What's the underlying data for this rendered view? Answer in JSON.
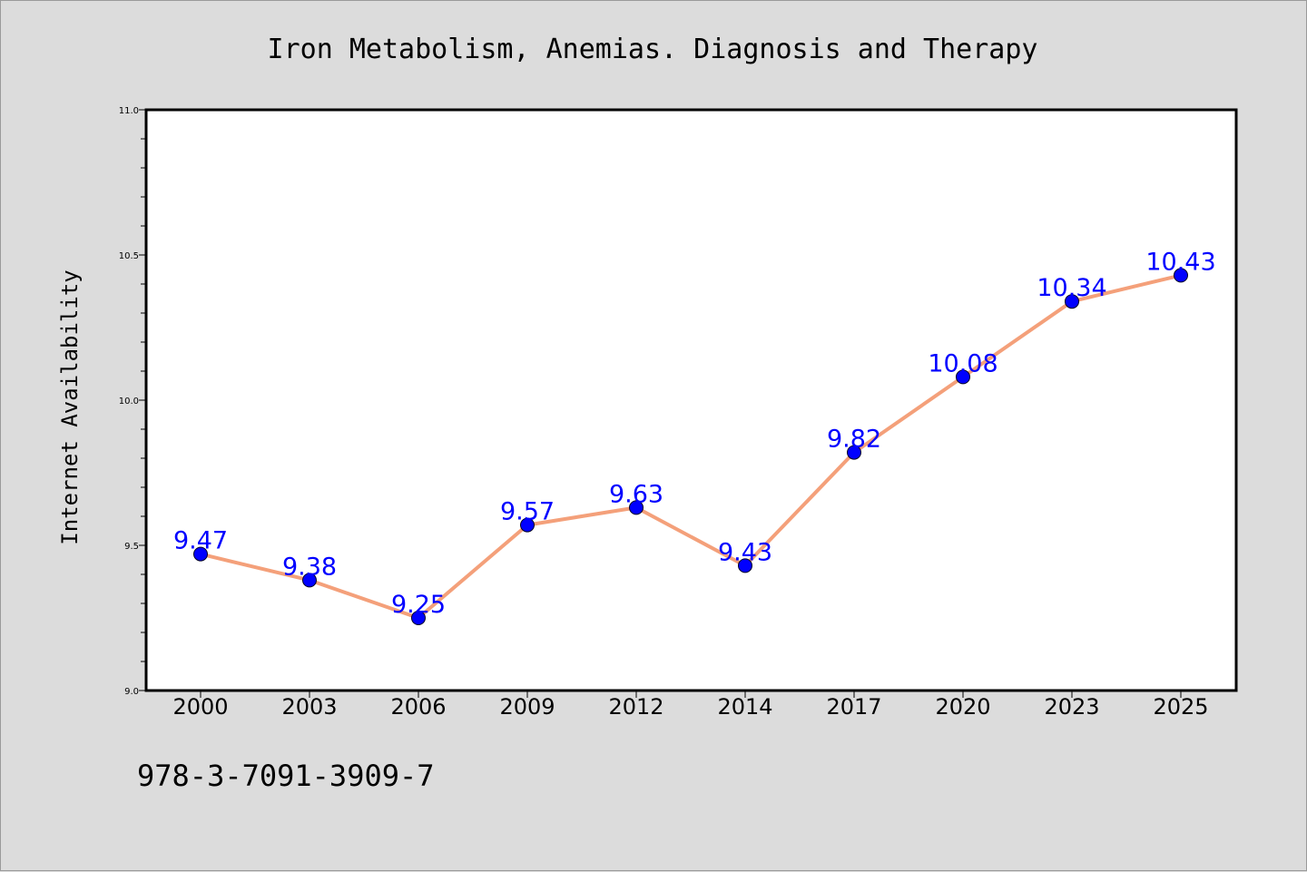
{
  "chart_data": {
    "type": "line",
    "title": "Iron Metabolism, Anemias. Diagnosis and Therapy",
    "xlabel": "",
    "ylabel": "Internet Availability",
    "categories": [
      "2000",
      "2003",
      "2006",
      "2009",
      "2012",
      "2014",
      "2017",
      "2020",
      "2023",
      "2025"
    ],
    "series": [
      {
        "values": [
          9.47,
          9.38,
          9.25,
          9.57,
          9.63,
          9.43,
          9.82,
          10.08,
          10.34,
          10.43
        ],
        "data_labels": [
          "9.47",
          "9.38",
          "9.25",
          "9.57",
          "9.63",
          "9.43",
          "9.82",
          "10.08",
          "10.34",
          "10.43"
        ],
        "line_color": "#f4a07a",
        "marker_color": "#0000ff"
      }
    ],
    "ylim": [
      9.0,
      11.0
    ],
    "yticks": [
      "9.0",
      "9.5",
      "10.0",
      "10.5",
      "11.0"
    ],
    "grid": false,
    "legend": "none"
  },
  "footer": {
    "isbn": "978-3-7091-3909-7"
  },
  "colors": {
    "background": "#dcdcdc",
    "plot_background": "#ffffff",
    "line": "#f4a07a",
    "marker": "#0000ff",
    "data_label": "#0000ff"
  }
}
